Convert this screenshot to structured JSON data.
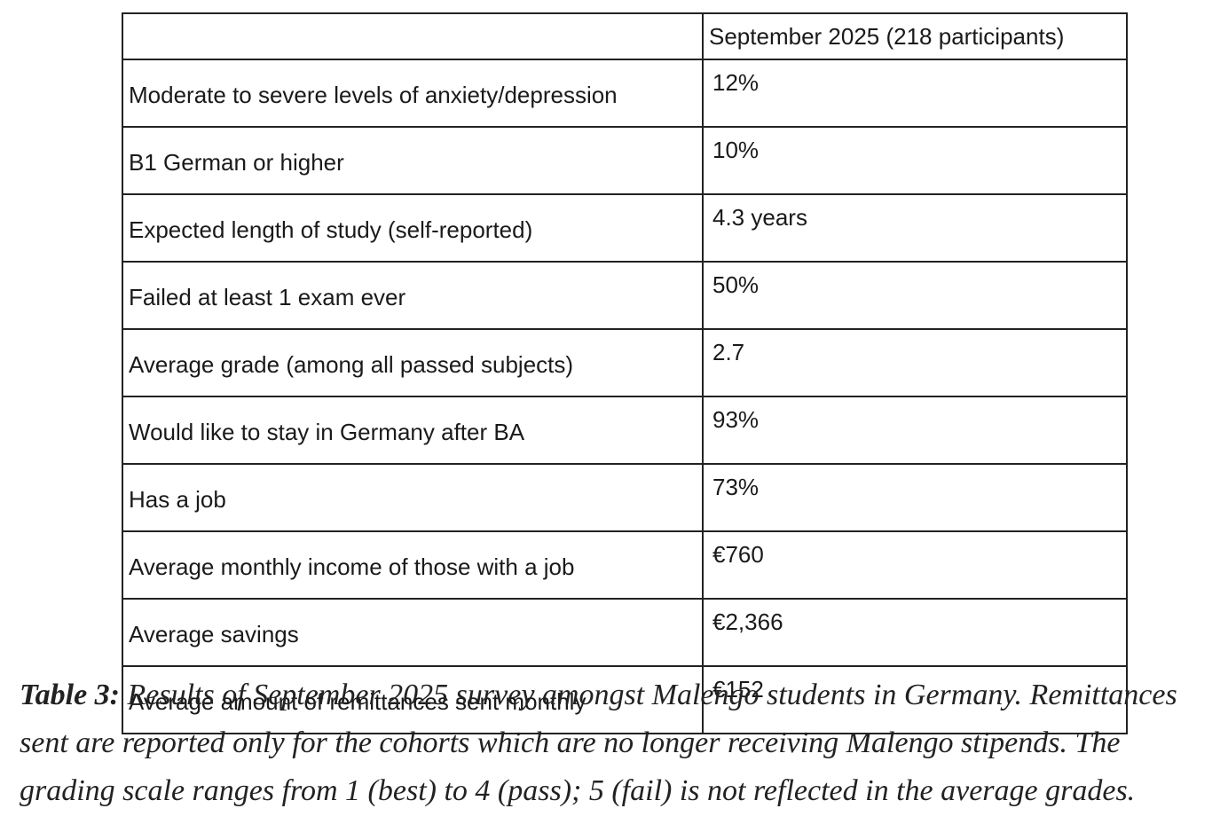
{
  "table": {
    "header": {
      "column": "September 2025 (218 participants)"
    },
    "rows": [
      [
        "Moderate to severe levels of anxiety/depression",
        "12%"
      ],
      [
        "B1 German or higher",
        "10%"
      ],
      [
        "Expected length of study (self-reported)",
        "4.3 years"
      ],
      [
        "Failed at least 1 exam ever",
        "50%"
      ],
      [
        "Average grade (among all passed subjects)",
        "2.7"
      ],
      [
        "Would like to stay in Germany after BA",
        "93%"
      ],
      [
        "Has a job",
        "73%"
      ],
      [
        "Average monthly income of those with a job",
        "€760"
      ],
      [
        "Average savings",
        "€2,366"
      ],
      [
        "Average amount of remittances sent monthly",
        "€152"
      ]
    ]
  },
  "caption": {
    "label": "Table 3:",
    "text": "Results of September 2025 survey amongst Malengo students in Germany. Remittances sent are reported only for the cohorts which are no longer receiving Malengo stipends. The grading scale ranges from 1 (best) to 4 (pass); 5 (fail) is not reflected in the average grades."
  }
}
